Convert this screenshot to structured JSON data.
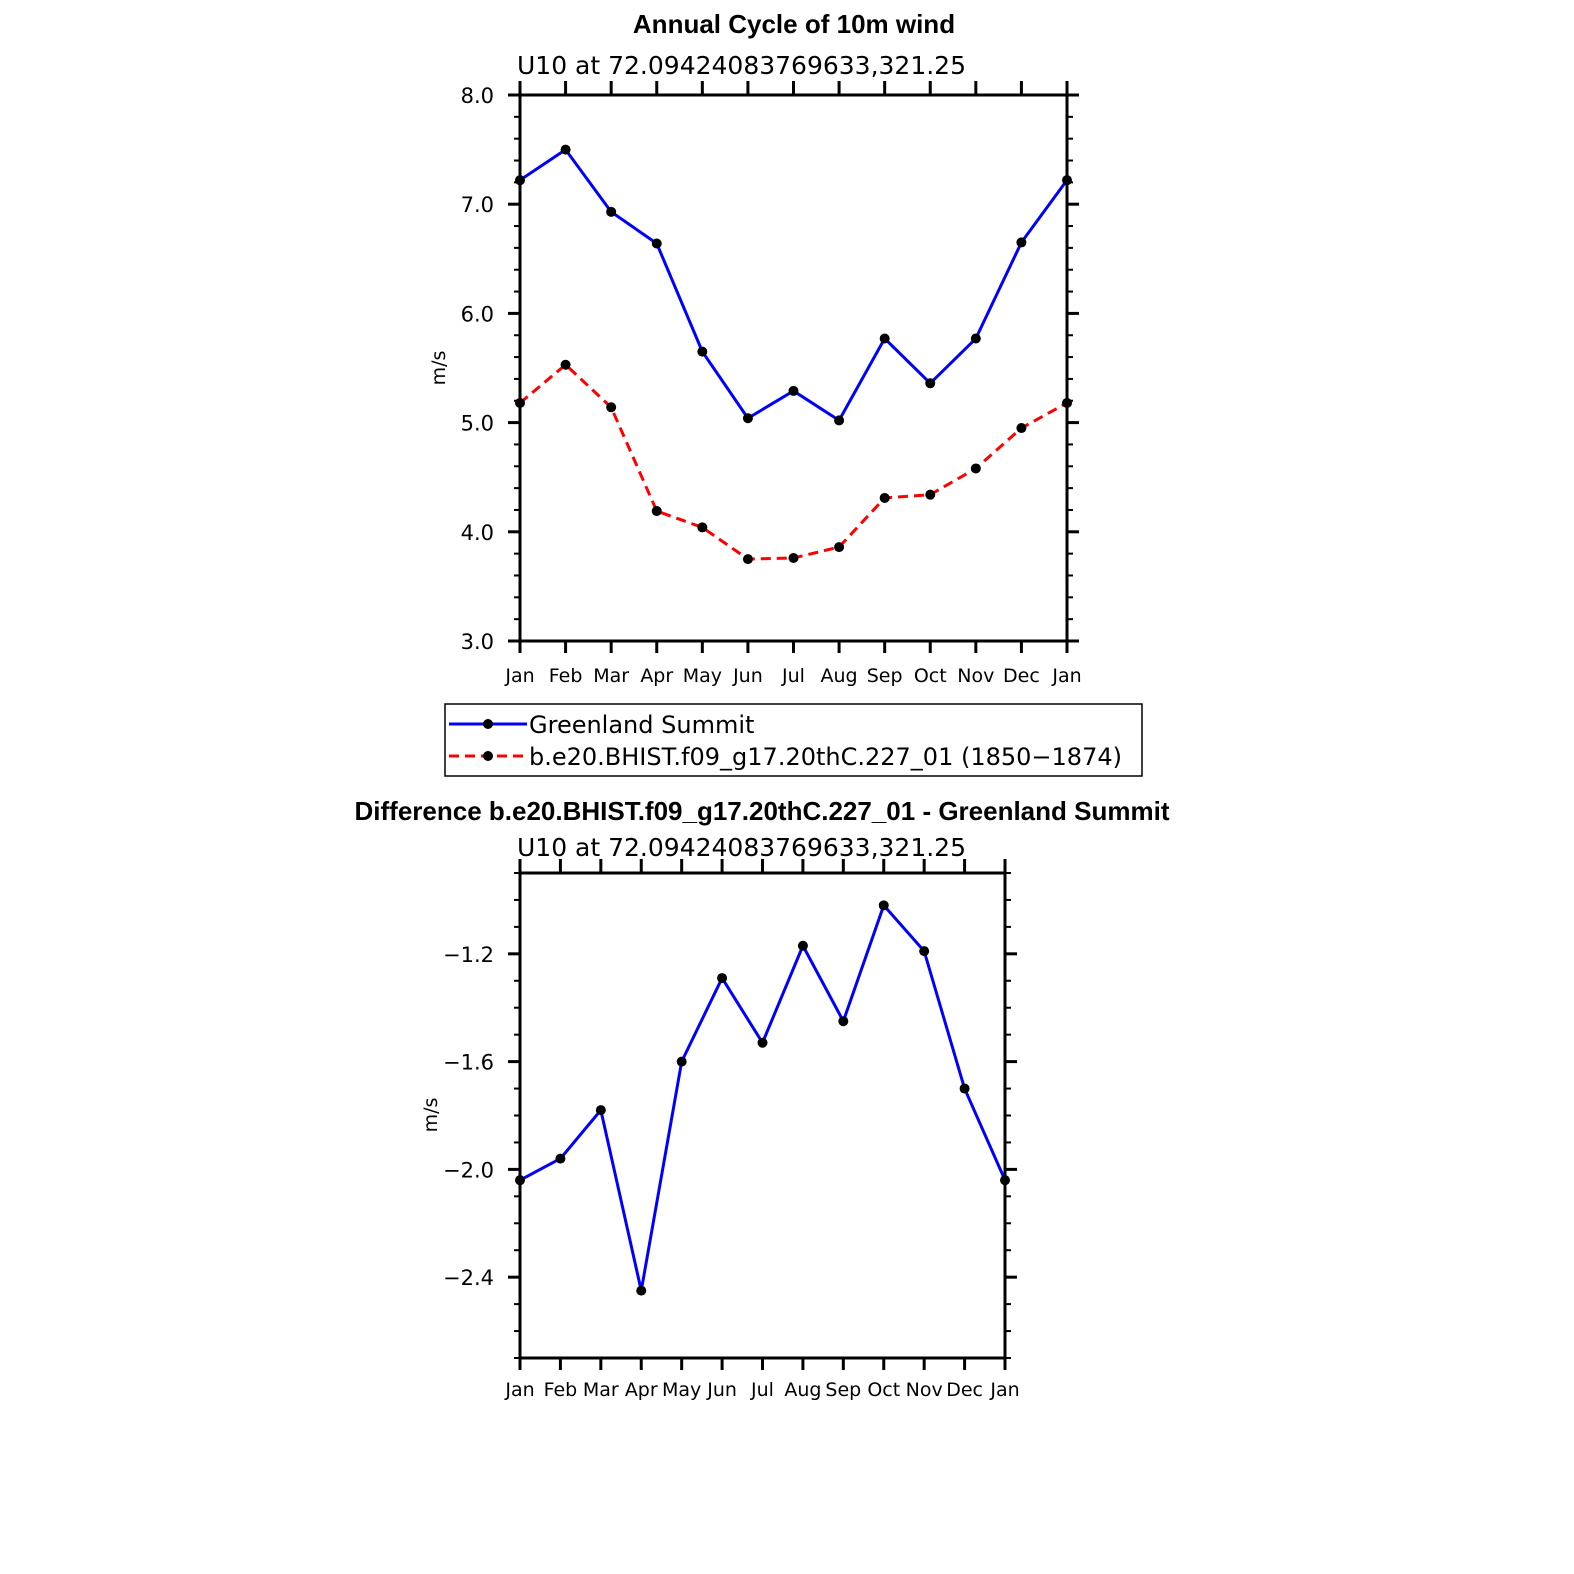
{
  "chart_data": [
    {
      "type": "line",
      "title": "Annual Cycle of 10m wind",
      "subtitle": "U10  at  72.09424083769633,321.25",
      "ylabel": "m/s",
      "xlabel": "",
      "categories": [
        "Jan",
        "Feb",
        "Mar",
        "Apr",
        "May",
        "Jun",
        "Jul",
        "Aug",
        "Sep",
        "Oct",
        "Nov",
        "Dec",
        "Jan"
      ],
      "ylim": [
        3.0,
        8.0
      ],
      "yticks": [
        "3.0",
        "4.0",
        "5.0",
        "6.0",
        "7.0",
        "8.0"
      ],
      "series": [
        {
          "name": "Greenland Summit",
          "color": "#0000ff",
          "dash": "solid",
          "values": [
            7.22,
            7.5,
            6.93,
            6.64,
            5.65,
            5.04,
            5.29,
            5.02,
            5.77,
            5.36,
            5.77,
            6.65,
            7.22
          ]
        },
        {
          "name": "b.e20.BHIST.f09_g17.20thC.227_01 (1850−1874)",
          "color": "#ff0000",
          "dash": "dashed",
          "values": [
            5.18,
            5.53,
            5.14,
            4.19,
            4.04,
            3.75,
            3.76,
            3.86,
            4.31,
            4.34,
            4.58,
            4.95,
            5.18
          ]
        }
      ],
      "legend": "below"
    },
    {
      "type": "line",
      "title": "Difference b.e20.BHIST.f09_g17.20thC.227_01 - Greenland Summit",
      "subtitle": "U10  at  72.09424083769633,321.25",
      "ylabel": "m/s",
      "xlabel": "",
      "categories": [
        "Jan",
        "Feb",
        "Mar",
        "Apr",
        "May",
        "Jun",
        "Jul",
        "Aug",
        "Sep",
        "Oct",
        "Nov",
        "Dec",
        "Jan"
      ],
      "ylim": [
        -2.7,
        -0.9
      ],
      "yticks": [
        "−2.4",
        "−2.0",
        "−1.6",
        "−1.2"
      ],
      "ytick_values": [
        -2.4,
        -2.0,
        -1.6,
        -1.2
      ],
      "series": [
        {
          "name": "Difference",
          "color": "#0000ff",
          "dash": "solid",
          "values": [
            -2.04,
            -1.96,
            -1.78,
            -2.45,
            -1.6,
            -1.29,
            -1.53,
            -1.17,
            -1.45,
            -1.02,
            -1.19,
            -1.7,
            -2.04
          ]
        }
      ]
    }
  ]
}
